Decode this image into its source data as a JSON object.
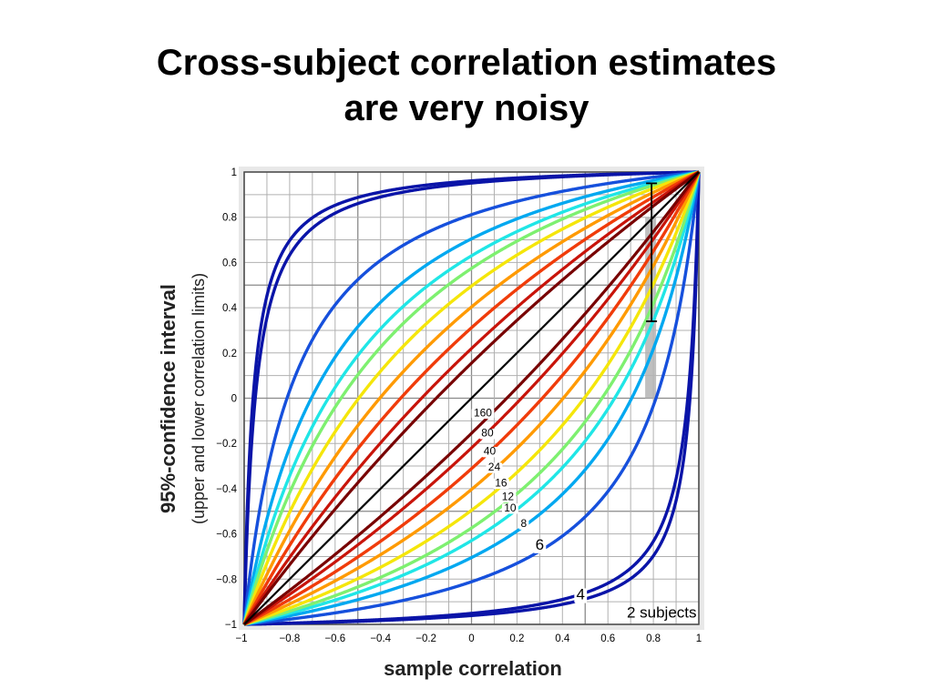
{
  "slide": {
    "title_line1": "Cross-subject correlation estimates",
    "title_line2": "are very noisy"
  },
  "chart_data": {
    "type": "line",
    "xlabel": "sample correlation",
    "ylabel": "95%-confidence interval",
    "ylabel_sub": "(upper and lower correlation limits)",
    "xlim": [
      -1,
      1
    ],
    "ylim": [
      -1,
      1
    ],
    "x_ticks": [
      "−1",
      "−0.8",
      "−0.6",
      "−0.4",
      "−0.2",
      "0",
      "0.2",
      "0.4",
      "0.6",
      "0.8",
      "1"
    ],
    "y_ticks": [
      "−1",
      "−0.8",
      "−0.6",
      "−0.4",
      "−0.2",
      "0",
      "0.2",
      "0.4",
      "0.6",
      "0.8",
      "1"
    ],
    "grid": true,
    "series": [
      {
        "name": "2 subjects",
        "n": 2,
        "color": "#0a14a8"
      },
      {
        "name": "4",
        "n": 4,
        "color": "#0a14a8"
      },
      {
        "name": "6",
        "n": 6,
        "color": "#1650dc"
      },
      {
        "name": "8",
        "n": 8,
        "color": "#00a8f0"
      },
      {
        "name": "10",
        "n": 10,
        "color": "#20e6e6"
      },
      {
        "name": "12",
        "n": 12,
        "color": "#7ef070"
      },
      {
        "name": "16",
        "n": 16,
        "color": "#f5e60a"
      },
      {
        "name": "24",
        "n": 24,
        "color": "#ff9a00"
      },
      {
        "name": "40",
        "n": 40,
        "color": "#f03c0a"
      },
      {
        "name": "80",
        "n": 80,
        "color": "#c8140a"
      },
      {
        "name": "160",
        "n": 160,
        "color": "#780000"
      }
    ],
    "diagonal": {
      "color": "#000000"
    },
    "highlight": {
      "x": 0.8,
      "ci_lower": 0.34,
      "ci_upper": 0.95,
      "shade_lower": 0.0,
      "shade_upper": 0.8,
      "shade_color": "#b4b4b4"
    }
  }
}
